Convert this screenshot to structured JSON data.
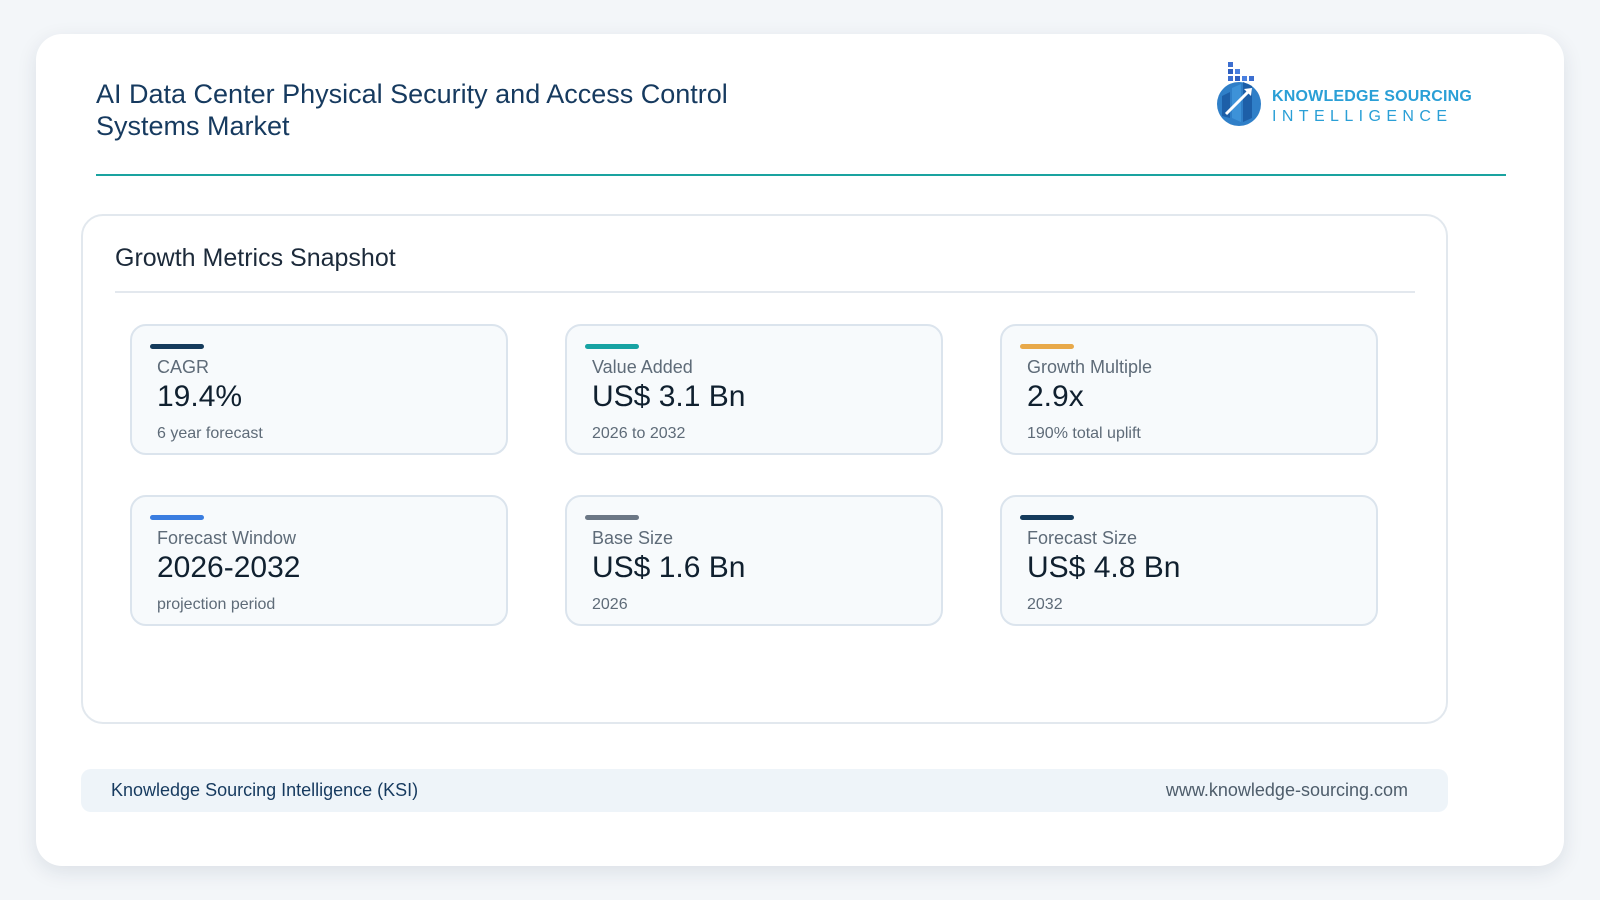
{
  "header": {
    "title_line1": "AI Data Center Physical Security and Access Control",
    "title_line2": "Systems Market",
    "logo_line1": "KNOWLEDGE SOURCING",
    "logo_line2": "INTELLIGENCE"
  },
  "panel": {
    "title": "Growth Metrics Snapshot",
    "cards": [
      {
        "label": "CAGR",
        "value": "19.4%",
        "sub": "6 year forecast",
        "accent": "#153b5c"
      },
      {
        "label": "Value Added",
        "value": "US$ 3.1 Bn",
        "sub": "2026 to 2032",
        "accent": "#17a3a3"
      },
      {
        "label": "Growth Multiple",
        "value": "2.9x",
        "sub": "190% total uplift",
        "accent": "#e8a94a"
      },
      {
        "label": "Forecast Window",
        "value": "2026-2032",
        "sub": "projection period",
        "accent": "#3a7de0"
      },
      {
        "label": "Base Size",
        "value": "US$ 1.6 Bn",
        "sub": "2026",
        "accent": "#6b7785"
      },
      {
        "label": "Forecast Size",
        "value": "US$ 4.8 Bn",
        "sub": "2032",
        "accent": "#153b5c"
      }
    ]
  },
  "footer": {
    "left": "Knowledge Sourcing Intelligence (KSI)",
    "right": "www.knowledge-sourcing.com"
  },
  "colors": {
    "header_rule": "#1aa3a0",
    "title_text": "#163a5f",
    "logo_blue": "#2a9fd6"
  }
}
